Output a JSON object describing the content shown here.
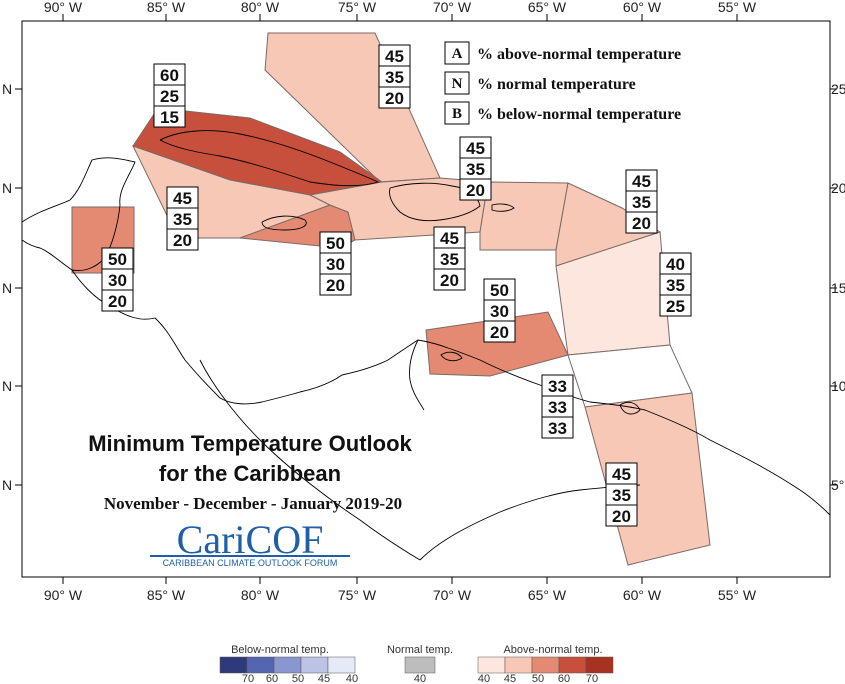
{
  "map": {
    "title_line1": "Minimum Temperature Outlook",
    "title_line2": "for the Caribbean",
    "subtitle": "November - December - January 2019-20",
    "logo": {
      "name": "CariCOF",
      "tagline": "CARIBBEAN CLIMATE OUTLOOK FORUM"
    },
    "longitude_labels": [
      "90° W",
      "85° W",
      "80° W",
      "75° W",
      "70° W",
      "65° W",
      "60° W",
      "55° W"
    ],
    "latitude_labels_left": [
      "N",
      "N",
      "N",
      "N",
      "N"
    ],
    "latitude_labels_right": [
      "25°",
      "20°",
      "15°",
      "10°",
      "5°"
    ],
    "key": [
      {
        "letter": "A",
        "text": "% above-normal temperature"
      },
      {
        "letter": "N",
        "text": "% normal temperature"
      },
      {
        "letter": "B",
        "text": "% below-normal temperature"
      }
    ],
    "regions": [
      {
        "name": "bahamas",
        "probs": [
          "45",
          "35",
          "20"
        ],
        "color": "#f8c8b6"
      },
      {
        "name": "cuba",
        "probs": [
          "60",
          "25",
          "15"
        ],
        "color": "#c6503c"
      },
      {
        "name": "cayman",
        "probs": [
          "45",
          "35",
          "20"
        ],
        "color": "#f8c8b6"
      },
      {
        "name": "jamaica",
        "probs": [
          "50",
          "30",
          "20"
        ],
        "color": "#e58a72"
      },
      {
        "name": "belize",
        "probs": [
          "50",
          "30",
          "20"
        ],
        "color": "#e58a72"
      },
      {
        "name": "hispaniola",
        "probs": [
          "45",
          "35",
          "20"
        ],
        "color": "#f8c8b6"
      },
      {
        "name": "puerto-rico",
        "probs": [
          "45",
          "35",
          "20"
        ],
        "color": "#f8c8b6"
      },
      {
        "name": "leeward-islands",
        "probs": [
          "45",
          "35",
          "20"
        ],
        "color": "#f8c8b6"
      },
      {
        "name": "windward-islands",
        "probs": [
          "40",
          "35",
          "25"
        ],
        "color": "#fde6de"
      },
      {
        "name": "abc-islands",
        "probs": [
          "50",
          "30",
          "20"
        ],
        "color": "#e58a72"
      },
      {
        "name": "trinidad",
        "probs": [
          "33",
          "33",
          "33"
        ],
        "color": "#ffffff"
      },
      {
        "name": "guianas",
        "probs": [
          "45",
          "35",
          "20"
        ],
        "color": "#f8c8b6"
      }
    ]
  },
  "colorbar": {
    "below": {
      "title": "Below-normal temp.",
      "ticks": [
        "70",
        "60",
        "50",
        "45",
        "40"
      ],
      "colors": [
        "#2e3a7a",
        "#5566b0",
        "#8a96cf",
        "#bcc4e6",
        "#e6e9f6"
      ]
    },
    "normal": {
      "title": "Normal temp.",
      "ticks": [
        "40"
      ],
      "colors": [
        "#bdbdbd"
      ]
    },
    "above": {
      "title": "Above-normal temp.",
      "ticks": [
        "40",
        "45",
        "50",
        "60",
        "70"
      ],
      "colors": [
        "#fde6de",
        "#f8c8b6",
        "#e58a72",
        "#c6503c",
        "#a83222"
      ]
    }
  }
}
